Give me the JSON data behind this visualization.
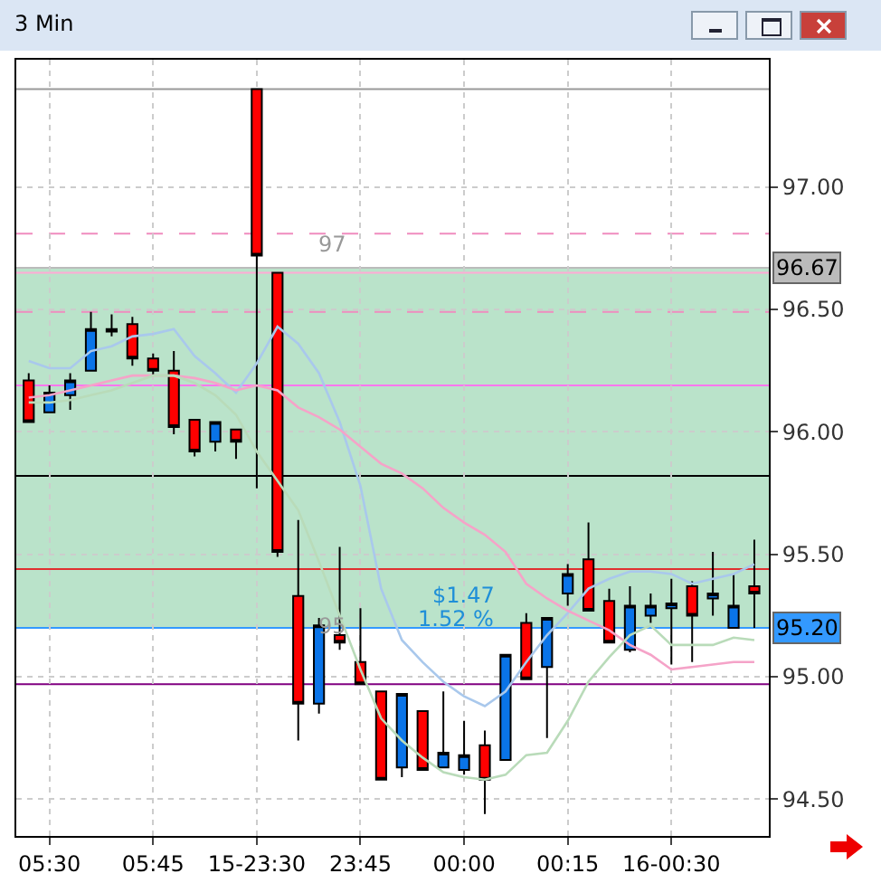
{
  "chart_data": {
    "type": "candlestick",
    "title": "3 Min",
    "categories": [
      null,
      "05:30",
      null,
      null,
      null,
      null,
      "05:45",
      null,
      null,
      null,
      null,
      "15-23:30",
      null,
      null,
      null,
      null,
      "23:45",
      null,
      null,
      null,
      null,
      "00:00",
      null,
      null,
      null,
      null,
      "00:15",
      null,
      null,
      null,
      null,
      "16-00:30",
      null,
      null,
      null,
      null
    ],
    "ohlc": [
      [
        96.21,
        96.24,
        96.04,
        96.04
      ],
      [
        96.08,
        96.19,
        96.08,
        96.16
      ],
      [
        96.15,
        96.24,
        96.09,
        96.21
      ],
      [
        96.25,
        96.49,
        96.25,
        96.42
      ],
      [
        96.42,
        96.48,
        96.39,
        96.41
      ],
      [
        96.44,
        96.47,
        96.27,
        96.3
      ],
      [
        96.3,
        96.32,
        96.23,
        96.25
      ],
      [
        96.25,
        96.33,
        95.99,
        96.02
      ],
      [
        96.05,
        96.05,
        95.9,
        95.92
      ],
      [
        95.96,
        96.04,
        95.92,
        96.04
      ],
      [
        96.01,
        96.01,
        95.89,
        95.96
      ],
      [
        97.4,
        97.4,
        95.77,
        96.72
      ],
      [
        96.65,
        96.65,
        95.49,
        95.51
      ],
      [
        95.33,
        95.64,
        94.74,
        94.89
      ],
      [
        94.89,
        95.24,
        94.85,
        95.21
      ],
      [
        95.17,
        95.53,
        95.11,
        95.14
      ],
      [
        95.06,
        95.28,
        94.97,
        94.97
      ],
      [
        94.94,
        94.94,
        94.58,
        94.58
      ],
      [
        94.63,
        94.93,
        94.59,
        94.93
      ],
      [
        94.86,
        94.86,
        94.62,
        94.62
      ],
      [
        94.63,
        94.94,
        94.63,
        94.69
      ],
      [
        94.62,
        94.82,
        94.6,
        94.68
      ],
      [
        94.72,
        94.78,
        94.44,
        94.58
      ],
      [
        94.66,
        95.09,
        94.66,
        95.09
      ],
      [
        95.22,
        95.26,
        94.99,
        94.99
      ],
      [
        95.04,
        95.24,
        94.75,
        95.24
      ],
      [
        95.34,
        95.46,
        95.29,
        95.42
      ],
      [
        95.48,
        95.63,
        95.27,
        95.27
      ],
      [
        95.31,
        95.36,
        95.14,
        95.14
      ],
      [
        95.11,
        95.37,
        95.1,
        95.29
      ],
      [
        95.25,
        95.34,
        95.22,
        95.29
      ],
      [
        95.28,
        95.4,
        95.05,
        95.3
      ],
      [
        95.37,
        95.39,
        95.06,
        95.25
      ],
      [
        95.32,
        95.51,
        95.25,
        95.34
      ],
      [
        95.2,
        95.42,
        95.2,
        95.29
      ],
      [
        95.37,
        95.56,
        95.2,
        95.34
      ]
    ],
    "series": [
      {
        "type": "line",
        "color": "#a9c8ec",
        "values": [
          96.29,
          96.26,
          96.26,
          96.33,
          96.35,
          96.39,
          96.4,
          96.42,
          96.31,
          96.24,
          96.16,
          96.28,
          96.43,
          96.36,
          96.24,
          96.04,
          95.78,
          95.36,
          95.15,
          95.06,
          94.98,
          94.92,
          94.88,
          94.94,
          95.06,
          95.17,
          95.26,
          95.36,
          95.4,
          95.43,
          95.43,
          95.42,
          95.38,
          95.4,
          95.42,
          95.46
        ]
      },
      {
        "type": "line",
        "color": "#f5a3c8",
        "values": [
          96.14,
          96.15,
          96.17,
          96.19,
          96.21,
          96.23,
          96.23,
          96.23,
          96.22,
          96.2,
          96.17,
          96.19,
          96.17,
          96.1,
          96.06,
          96.01,
          95.94,
          95.87,
          95.83,
          95.77,
          95.69,
          95.63,
          95.58,
          95.51,
          95.38,
          95.32,
          95.27,
          95.23,
          95.19,
          95.13,
          95.09,
          95.03,
          95.04,
          95.05,
          95.06,
          95.06
        ]
      },
      {
        "type": "line",
        "color": "#b9dbb9",
        "values": [
          96.12,
          96.12,
          96.13,
          96.15,
          96.17,
          96.2,
          96.23,
          96.23,
          96.2,
          96.15,
          96.07,
          95.92,
          95.8,
          95.68,
          95.47,
          95.25,
          95.03,
          94.83,
          94.74,
          94.67,
          94.61,
          94.59,
          94.58,
          94.6,
          94.68,
          94.69,
          94.82,
          94.98,
          95.08,
          95.17,
          95.21,
          95.13,
          95.13,
          95.13,
          95.16,
          95.15
        ]
      }
    ],
    "ylim": [
      94.35,
      97.52
    ],
    "yticks": [
      {
        "value": 94.5,
        "label": "94.50"
      },
      {
        "value": 95,
        "label": "95.00"
      },
      {
        "value": 95.5,
        "label": "95.50"
      },
      {
        "value": 96,
        "label": "96.00"
      },
      {
        "value": 96.5,
        "label": "96.50"
      },
      {
        "value": 97,
        "label": "97.00"
      }
    ],
    "grid": true,
    "bands": [
      {
        "axis": "y",
        "from": 95.2,
        "to": 96.67,
        "color": "#66c28a"
      }
    ],
    "ref_lines": [
      {
        "axis": "y",
        "value": 97.4,
        "color": "#999999",
        "line_style": "solid"
      },
      {
        "axis": "y",
        "value": 96.81,
        "color": "#f08cbf",
        "line_style": "dashed"
      },
      {
        "axis": "y",
        "value": 96.67,
        "label": "96.67",
        "color": "#bbbbbb",
        "line_style": "solid"
      },
      {
        "axis": "y",
        "value": 96.65,
        "color": "#ffaad5",
        "line_style": "solid"
      },
      {
        "axis": "y",
        "value": 96.49,
        "color": "#f08cbf",
        "line_style": "dashed"
      },
      {
        "axis": "y",
        "value": 96.19,
        "color": "#ff77ee",
        "line_style": "solid"
      },
      {
        "axis": "y",
        "value": 95.82,
        "color": "#000000",
        "line_style": "solid"
      },
      {
        "axis": "y",
        "value": 95.44,
        "color": "#e03030",
        "line_style": "solid"
      },
      {
        "axis": "y",
        "value": 95.2,
        "label": "95.20",
        "color": "#3399ff",
        "line_style": "solid"
      },
      {
        "axis": "y",
        "value": 94.97,
        "color": "#800080",
        "line_style": "solid"
      }
    ],
    "annotations": [
      {
        "text": "97",
        "y": 96.7
      },
      {
        "text": "95",
        "y": 95.14
      },
      "$1.47",
      "1.52 %"
    ]
  }
}
